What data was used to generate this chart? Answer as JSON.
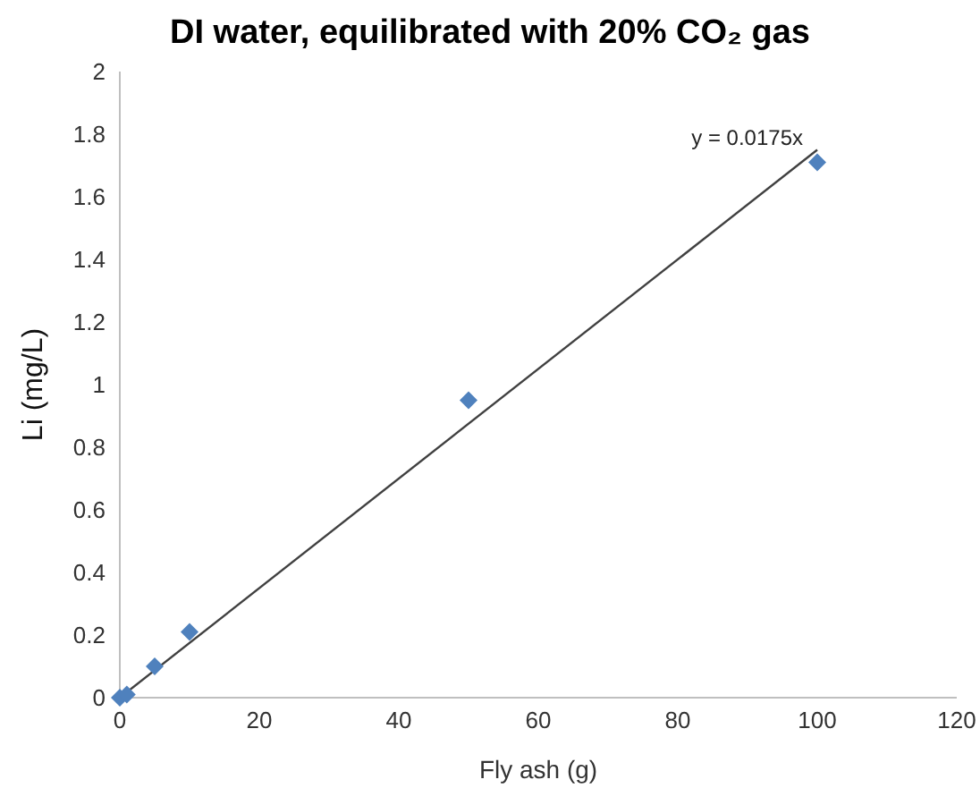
{
  "chart_data": {
    "type": "scatter",
    "title": "DI water, equilibrated with 20% CO₂ gas",
    "xlabel": "Fly ash (g)",
    "ylabel": "Li (mg/L)",
    "xlim": [
      0,
      120
    ],
    "xticks": [
      0,
      20,
      40,
      60,
      80,
      100,
      120
    ],
    "ylim": [
      0,
      2
    ],
    "yticks": [
      0,
      0.2,
      0.4,
      0.6,
      0.8,
      1,
      1.2,
      1.4,
      1.6,
      1.8,
      2
    ],
    "marker": "diamond",
    "grid": false,
    "series": [
      {
        "color": "#4f81bd",
        "x": [
          0,
          1,
          5,
          10,
          50,
          100
        ],
        "values": [
          0,
          0.01,
          0.1,
          0.21,
          0.95,
          1.71
        ]
      },
      {
        "type": "line",
        "marker": "none",
        "color": "#404040",
        "x": [
          0,
          100
        ],
        "values": [
          0,
          1.75
        ]
      }
    ],
    "annotations": [
      {
        "text": "y = 0.0175x",
        "x": 100,
        "y": 1.75
      }
    ]
  }
}
